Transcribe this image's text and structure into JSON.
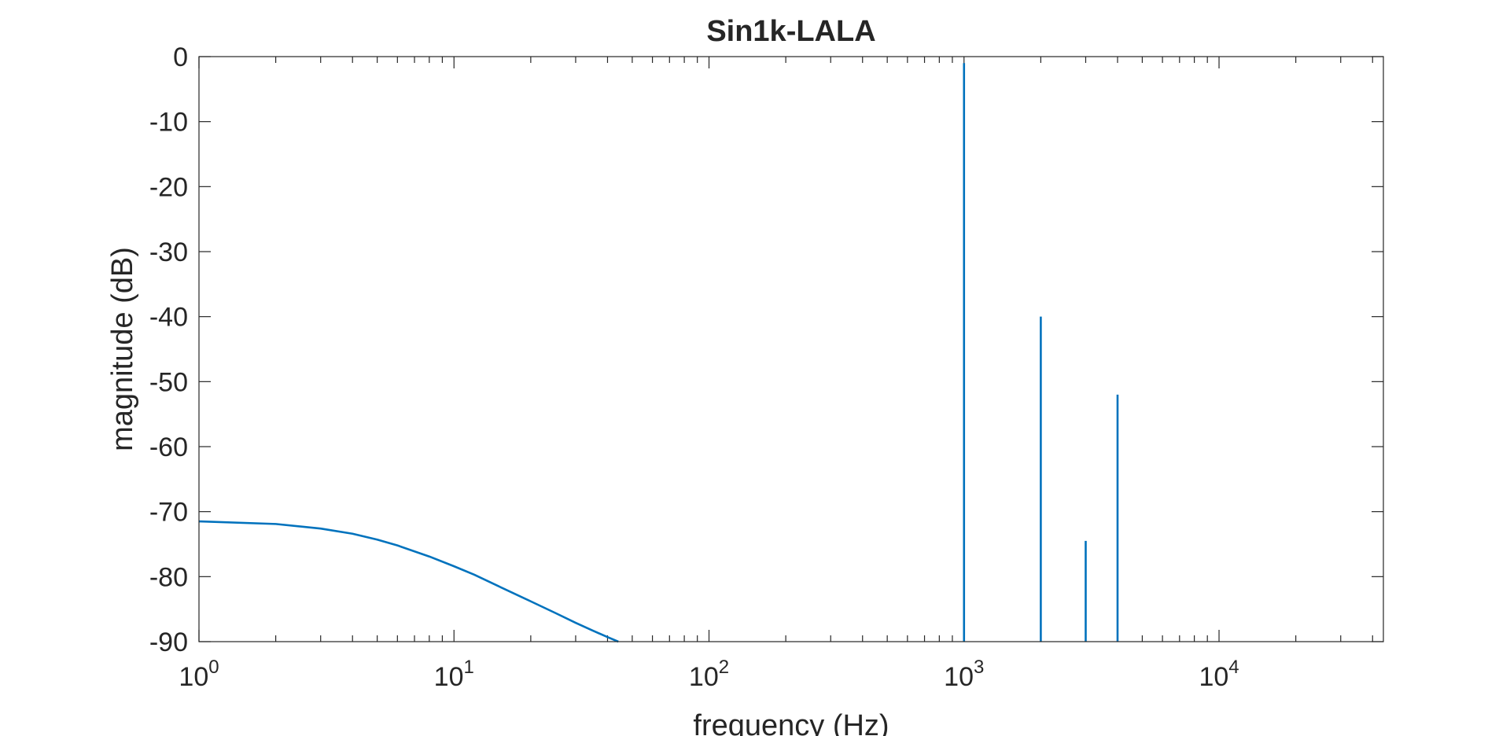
{
  "chart_data": {
    "type": "line",
    "title": "Sin1k-LALA",
    "xlabel": "frequency (Hz)",
    "ylabel": "magnitude (dB)",
    "x_scale": "log",
    "xlim": [
      1,
      44100
    ],
    "ylim": [
      -90,
      0
    ],
    "grid": false,
    "line_color": "#0072BD",
    "axis_color": "#262626",
    "x_ticks": [
      {
        "value": 1,
        "base": "10",
        "exp": "0"
      },
      {
        "value": 10,
        "base": "10",
        "exp": "1"
      },
      {
        "value": 100,
        "base": "10",
        "exp": "2"
      },
      {
        "value": 1000,
        "base": "10",
        "exp": "3"
      },
      {
        "value": 10000,
        "base": "10",
        "exp": "4"
      }
    ],
    "y_ticks": [
      {
        "value": 0,
        "label": "0"
      },
      {
        "value": -10,
        "label": "-10"
      },
      {
        "value": -20,
        "label": "-20"
      },
      {
        "value": -30,
        "label": "-30"
      },
      {
        "value": -40,
        "label": "-40"
      },
      {
        "value": -50,
        "label": "-50"
      },
      {
        "value": -60,
        "label": "-60"
      },
      {
        "value": -70,
        "label": "-70"
      },
      {
        "value": -80,
        "label": "-80"
      },
      {
        "value": -90,
        "label": "-90"
      }
    ],
    "series": [
      {
        "x": [
          1,
          2,
          3,
          4,
          5,
          6,
          8,
          10,
          12,
          15,
          20,
          25,
          30,
          35,
          40,
          44.1
        ],
        "y": [
          -71.5,
          -71.9,
          -72.6,
          -73.4,
          -74.3,
          -75.2,
          -76.9,
          -78.4,
          -79.7,
          -81.5,
          -83.8,
          -85.6,
          -87.1,
          -88.3,
          -89.3,
          -90
        ]
      }
    ],
    "peaks": [
      {
        "x": 1000,
        "y": -1
      },
      {
        "x": 2000,
        "y": -40
      },
      {
        "x": 3000,
        "y": -74.5
      },
      {
        "x": 4000,
        "y": -52
      }
    ]
  }
}
